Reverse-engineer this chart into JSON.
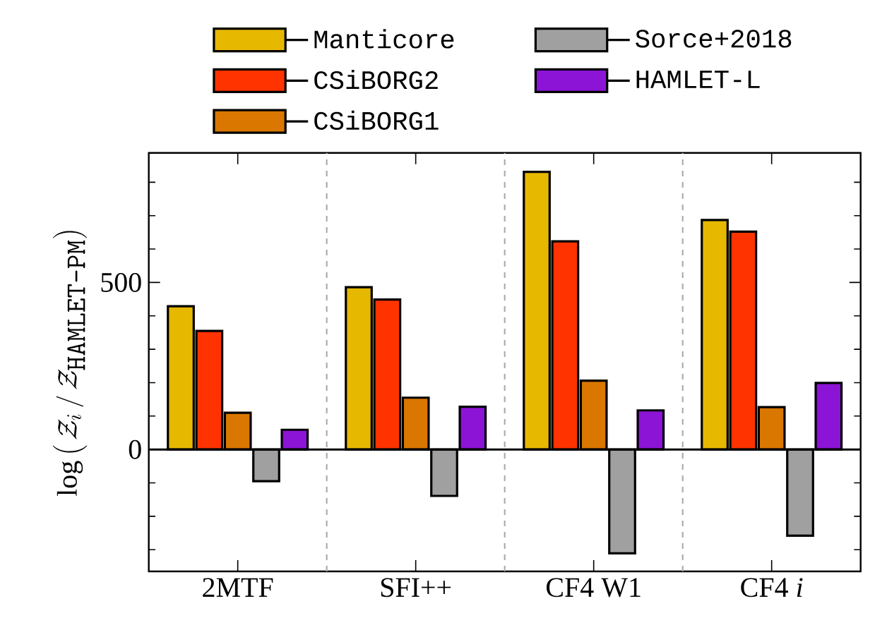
{
  "chart_data": {
    "type": "bar",
    "ylabel": "\\log\\left(\\,\\mathcal{Z}_i\\,/\\,\\mathcal{Z}_{\\texttt{HAMLET-PM}}\\right)",
    "categories": [
      "2MTF",
      "SFI++",
      "CF4 W1",
      "CF4 *i*"
    ],
    "series": [
      {
        "name": "Manticore",
        "color": "#e6b800",
        "values": [
          429,
          486,
          831,
          687
        ]
      },
      {
        "name": "CSiBORG2",
        "color": "#ff3300",
        "values": [
          355,
          449,
          623,
          652
        ]
      },
      {
        "name": "CSiBORG1",
        "color": "#d97700",
        "values": [
          110,
          155,
          206,
          127
        ]
      },
      {
        "name": "Sorce+2018",
        "color": "#a0a0a0",
        "values": [
          -95,
          -139,
          -311,
          -258
        ]
      },
      {
        "name": "HAMLET-L",
        "color": "#8c14d6",
        "values": [
          59,
          128,
          117,
          199
        ]
      }
    ],
    "ylim": [
      -365,
      888
    ],
    "yticks": [
      {
        "value": -300,
        "label": null
      },
      {
        "value": -200,
        "label": null
      },
      {
        "value": -100,
        "label": null
      },
      0,
      {
        "value": 100,
        "label": null
      },
      {
        "value": 200,
        "label": null
      },
      {
        "value": 300,
        "label": null
      },
      {
        "value": 400,
        "label": null
      },
      500,
      {
        "value": 600,
        "label": null
      },
      {
        "value": 700,
        "label": null
      },
      {
        "value": 800,
        "label": null
      }
    ],
    "ref_lines": [
      {
        "axis": "y",
        "value": 0,
        "color": "#000000",
        "line_style": "solid"
      }
    ],
    "legend": "top",
    "grid": false
  }
}
